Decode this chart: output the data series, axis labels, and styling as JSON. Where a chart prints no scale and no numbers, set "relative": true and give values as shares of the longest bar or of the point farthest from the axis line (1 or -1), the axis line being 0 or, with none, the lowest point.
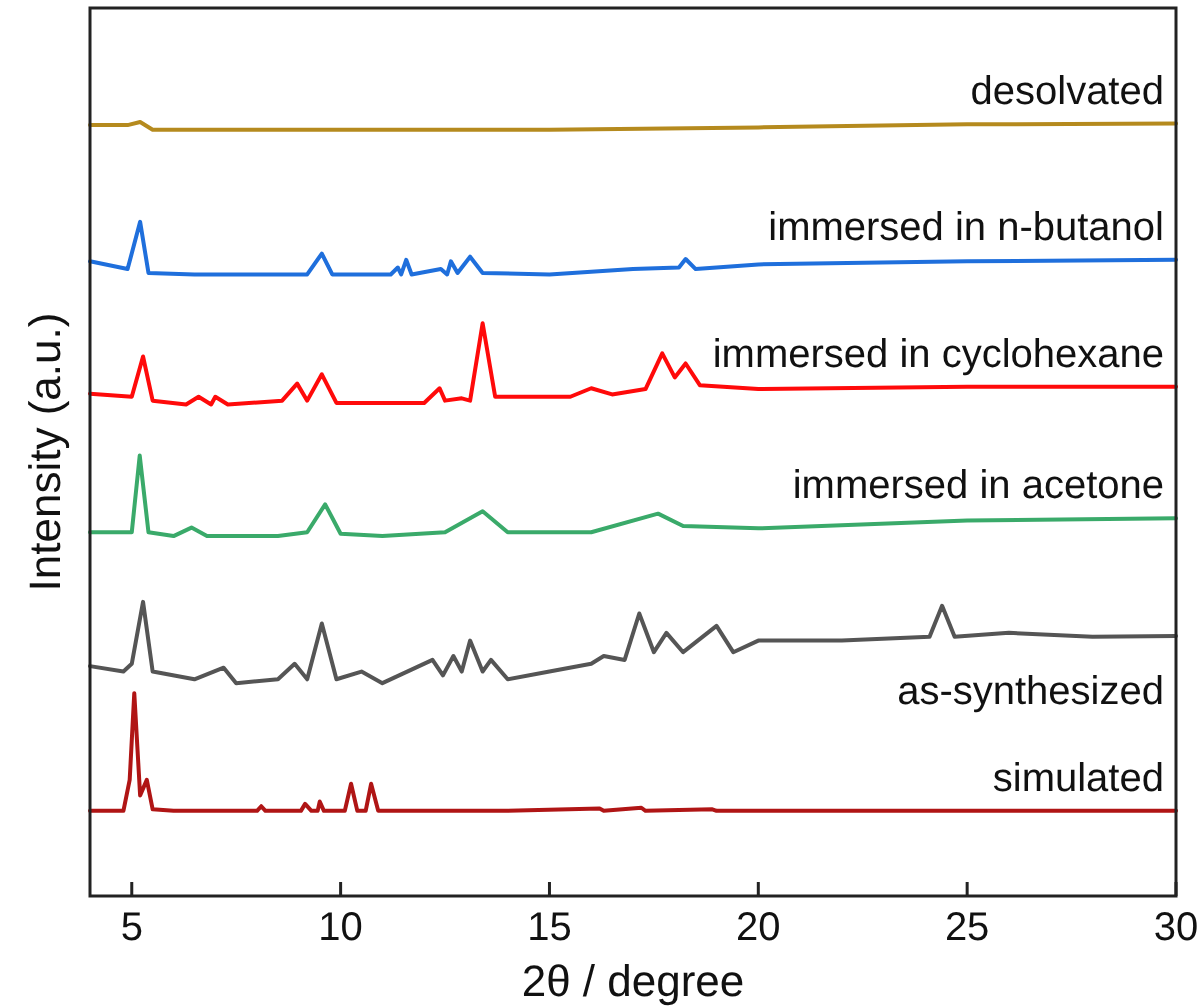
{
  "chart_data": {
    "type": "line",
    "relative": true,
    "xlabel": "2θ / degree",
    "ylabel": "Intensity (a.u.)",
    "xlim": [
      4,
      30
    ],
    "xticks": [
      5,
      10,
      15,
      20,
      25,
      30
    ],
    "grid": false,
    "marker": "none",
    "line_style": "solid",
    "series": [
      {
        "name": "simulated",
        "color": "#b01515",
        "x": [
          4,
          4.8,
          4.95,
          5.06,
          5.2,
          5.36,
          5.5,
          6,
          8.0,
          8.1,
          8.2,
          9.05,
          9.15,
          9.3,
          9.45,
          9.5,
          9.6,
          10.1,
          10.25,
          10.4,
          10.6,
          10.73,
          10.9,
          12,
          14,
          16.2,
          16.3,
          17.2,
          17.3,
          18.9,
          19,
          30
        ],
        "values": [
          0.11,
          0.11,
          0.15,
          0.262,
          0.13,
          0.15,
          0.112,
          0.11,
          0.11,
          0.116,
          0.11,
          0.11,
          0.119,
          0.11,
          0.11,
          0.122,
          0.11,
          0.11,
          0.145,
          0.11,
          0.11,
          0.145,
          0.11,
          0.11,
          0.11,
          0.113,
          0.11,
          0.114,
          0.11,
          0.112,
          0.11,
          0.11
        ]
      },
      {
        "name": "as-synthesized",
        "color": "#555555",
        "x": [
          4,
          4.8,
          5.0,
          5.27,
          5.5,
          6.5,
          7.2,
          7.5,
          8.5,
          8.9,
          9.2,
          9.55,
          9.9,
          10.5,
          11,
          12.2,
          12.45,
          12.7,
          12.9,
          13.1,
          13.4,
          13.6,
          14,
          15,
          16,
          16.3,
          16.8,
          17.15,
          17.5,
          17.8,
          18.2,
          19.0,
          19.4,
          20,
          22,
          24.1,
          24.4,
          24.7,
          26,
          28,
          30
        ],
        "values": [
          0.297,
          0.29,
          0.3,
          0.38,
          0.29,
          0.28,
          0.295,
          0.275,
          0.28,
          0.3,
          0.28,
          0.352,
          0.28,
          0.29,
          0.275,
          0.305,
          0.285,
          0.31,
          0.29,
          0.33,
          0.29,
          0.305,
          0.28,
          0.29,
          0.3,
          0.31,
          0.305,
          0.365,
          0.315,
          0.34,
          0.315,
          0.349,
          0.315,
          0.33,
          0.33,
          0.335,
          0.375,
          0.335,
          0.34,
          0.335,
          0.336
        ]
      },
      {
        "name": "immersed in acetone",
        "color": "#3aaa6a",
        "x": [
          4,
          4.8,
          5.0,
          5.19,
          5.4,
          6.0,
          6.43,
          6.8,
          8.5,
          9.2,
          9.63,
          10.0,
          11,
          12.5,
          13.4,
          14,
          16,
          17.6,
          18.2,
          20,
          25,
          30
        ],
        "values": [
          0.47,
          0.47,
          0.47,
          0.569,
          0.47,
          0.465,
          0.476,
          0.465,
          0.465,
          0.47,
          0.506,
          0.468,
          0.465,
          0.47,
          0.497,
          0.47,
          0.47,
          0.494,
          0.478,
          0.475,
          0.485,
          0.488
        ]
      },
      {
        "name": "immersed in cyclohexane",
        "color": "#ff0a0a",
        "x": [
          4,
          5.0,
          5.27,
          5.5,
          6.3,
          6.6,
          6.9,
          7.0,
          7.3,
          8.6,
          8.96,
          9.2,
          9.55,
          9.9,
          12.0,
          12.37,
          12.5,
          12.9,
          13.1,
          13.4,
          13.7,
          15.5,
          16.0,
          16.5,
          17.3,
          17.7,
          18.0,
          18.26,
          18.6,
          20,
          25,
          30
        ],
        "values": [
          0.649,
          0.645,
          0.697,
          0.64,
          0.635,
          0.645,
          0.635,
          0.645,
          0.635,
          0.64,
          0.662,
          0.64,
          0.674,
          0.637,
          0.637,
          0.656,
          0.64,
          0.643,
          0.64,
          0.74,
          0.645,
          0.645,
          0.656,
          0.648,
          0.655,
          0.701,
          0.67,
          0.688,
          0.66,
          0.655,
          0.658,
          0.658
        ]
      },
      {
        "name": "immersed in n-butanol",
        "color": "#1f6fdc",
        "x": [
          4,
          4.9,
          5.2,
          5.4,
          6.5,
          9.2,
          9.55,
          9.8,
          11.2,
          11.37,
          11.45,
          11.57,
          11.7,
          12.4,
          12.55,
          12.64,
          12.8,
          13.1,
          13.4,
          15,
          17,
          18.1,
          18.26,
          18.5,
          20,
          25,
          30
        ],
        "values": [
          0.82,
          0.81,
          0.871,
          0.805,
          0.803,
          0.803,
          0.83,
          0.803,
          0.803,
          0.812,
          0.803,
          0.822,
          0.803,
          0.81,
          0.803,
          0.82,
          0.805,
          0.826,
          0.805,
          0.803,
          0.81,
          0.812,
          0.823,
          0.81,
          0.816,
          0.82,
          0.822
        ]
      },
      {
        "name": "desolvated",
        "color": "#b58a1e",
        "x": [
          4,
          4.9,
          5.2,
          5.5,
          10,
          15,
          20,
          25,
          30
        ],
        "values": [
          0.996,
          0.996,
          1.0,
          0.99,
          0.99,
          0.99,
          0.993,
          0.997,
          0.998
        ]
      }
    ]
  }
}
